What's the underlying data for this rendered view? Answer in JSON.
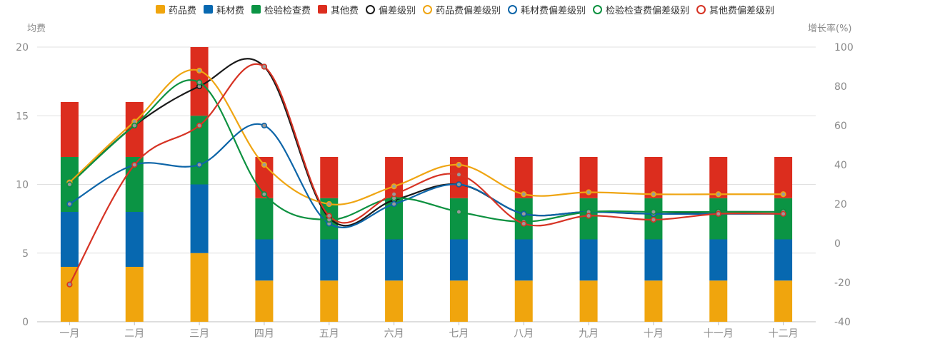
{
  "chart_data": {
    "type": "bar",
    "categories": [
      "一月",
      "二月",
      "三月",
      "四月",
      "五月",
      "六月",
      "七月",
      "八月",
      "九月",
      "十月",
      "十一月",
      "十二月"
    ],
    "y_left": {
      "name": "均费",
      "min": 0,
      "max": 20,
      "ticks": [
        "0",
        "5",
        "10",
        "15",
        "20"
      ]
    },
    "y_right": {
      "name": "增长率(%)",
      "min": -40,
      "max": 100,
      "ticks": [
        "-40",
        "-20",
        "0",
        "20",
        "40",
        "60",
        "80",
        "100"
      ]
    },
    "bar_series": [
      {
        "name": "药品费",
        "color": "#f0a50d",
        "values": [
          4,
          4,
          5,
          3,
          3,
          3,
          3,
          3,
          3,
          3,
          3,
          3
        ]
      },
      {
        "name": "耗材费",
        "color": "#0768b0",
        "values": [
          4,
          4,
          5,
          3,
          3,
          3,
          3,
          3,
          3,
          3,
          3,
          3
        ]
      },
      {
        "name": "检验检查费",
        "color": "#0b9444",
        "values": [
          4,
          4,
          5,
          3,
          3,
          3,
          3,
          3,
          3,
          3,
          3,
          3
        ]
      },
      {
        "name": "其他费",
        "color": "#dc2d1e",
        "values": [
          4,
          4,
          5,
          3,
          3,
          3,
          3,
          3,
          3,
          3,
          3,
          3
        ]
      }
    ],
    "line_series": [
      {
        "name": "偏差级别",
        "color": "#1a1a1a",
        "values": [
          30,
          60,
          80,
          90,
          13,
          22,
          30,
          15,
          16,
          15,
          16,
          16
        ]
      },
      {
        "name": "药品费偏差级别",
        "color": "#efa512",
        "values": [
          31,
          62,
          88,
          40,
          20,
          29,
          40,
          25,
          26,
          25,
          25,
          25
        ]
      },
      {
        "name": "耗材费偏差级别",
        "color": "#0d65a8",
        "values": [
          20,
          40,
          40,
          60,
          10,
          20,
          30,
          15,
          16,
          15,
          15,
          15
        ]
      },
      {
        "name": "检验检查费偏差级别",
        "color": "#0d9140",
        "values": [
          30,
          60,
          82,
          25,
          12,
          23,
          16,
          11,
          16,
          16,
          16,
          16
        ]
      },
      {
        "name": "其他费偏差级别",
        "color": "#d63324",
        "values": [
          -21,
          40,
          60,
          90,
          14,
          25,
          35,
          10,
          14,
          12,
          15,
          15
        ]
      }
    ],
    "grid": true,
    "legend_position": "top"
  }
}
